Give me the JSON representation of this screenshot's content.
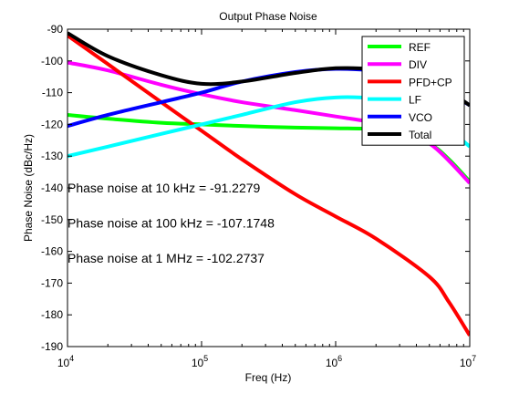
{
  "chart_data": {
    "type": "line",
    "title": "Output Phase Noise",
    "xlabel": "Freq (Hz)",
    "ylabel": "Phase Noise (dBc/Hz)",
    "x_scale": "log",
    "xlim": [
      10000,
      10000000
    ],
    "ylim": [
      -190,
      -90
    ],
    "x_ticks": [
      {
        "value": 10000,
        "base": "10",
        "exp": "4"
      },
      {
        "value": 100000,
        "base": "10",
        "exp": "5"
      },
      {
        "value": 1000000,
        "base": "10",
        "exp": "6"
      },
      {
        "value": 10000000,
        "base": "10",
        "exp": "7"
      }
    ],
    "y_ticks": [
      -90,
      -100,
      -110,
      -120,
      -130,
      -140,
      -150,
      -160,
      -170,
      -180,
      -190
    ],
    "grid": false,
    "legend_position": "top-right",
    "series": [
      {
        "name": "REF",
        "color": "#00ff00",
        "points": [
          [
            10000,
            -117.0
          ],
          [
            20000,
            -118.2
          ],
          [
            50000,
            -119.5
          ],
          [
            100000,
            -120.0
          ],
          [
            200000,
            -120.5
          ],
          [
            500000,
            -121.0
          ],
          [
            1000000,
            -121.2
          ],
          [
            2000000,
            -121.5
          ],
          [
            3000000,
            -122.5
          ],
          [
            5000000,
            -126.0
          ],
          [
            7000000,
            -131.0
          ],
          [
            10000000,
            -138.0
          ]
        ]
      },
      {
        "name": "DIV",
        "color": "#ff00ff",
        "points": [
          [
            10000,
            -100.5
          ],
          [
            20000,
            -103.0
          ],
          [
            50000,
            -107.5
          ],
          [
            100000,
            -110.5
          ],
          [
            200000,
            -113.0
          ],
          [
            500000,
            -115.5
          ],
          [
            1000000,
            -117.5
          ],
          [
            2000000,
            -119.5
          ],
          [
            3000000,
            -121.5
          ],
          [
            5000000,
            -126.0
          ],
          [
            7000000,
            -131.5
          ],
          [
            10000000,
            -138.5
          ]
        ]
      },
      {
        "name": "PFD+CP",
        "color": "#ff0000",
        "points": [
          [
            10000,
            -92.0
          ],
          [
            20000,
            -101.0
          ],
          [
            50000,
            -113.0
          ],
          [
            100000,
            -122.0
          ],
          [
            200000,
            -131.0
          ],
          [
            500000,
            -142.0
          ],
          [
            1000000,
            -149.0
          ],
          [
            2000000,
            -156.0
          ],
          [
            5000000,
            -168.0
          ],
          [
            7000000,
            -176.0
          ],
          [
            10000000,
            -186.5
          ]
        ]
      },
      {
        "name": "LF",
        "color": "#00ffff",
        "points": [
          [
            10000,
            -130.0
          ],
          [
            20000,
            -127.0
          ],
          [
            50000,
            -123.0
          ],
          [
            100000,
            -120.0
          ],
          [
            200000,
            -117.0
          ],
          [
            500000,
            -113.0
          ],
          [
            1000000,
            -111.5
          ],
          [
            2000000,
            -111.8
          ],
          [
            3000000,
            -113.0
          ],
          [
            5000000,
            -117.0
          ],
          [
            7000000,
            -121.5
          ],
          [
            10000000,
            -127.0
          ]
        ]
      },
      {
        "name": "VCO",
        "color": "#0000ff",
        "points": [
          [
            10000,
            -120.5
          ],
          [
            20000,
            -117.0
          ],
          [
            50000,
            -113.0
          ],
          [
            100000,
            -110.0
          ],
          [
            200000,
            -106.5
          ],
          [
            500000,
            -103.5
          ],
          [
            1000000,
            -102.5
          ],
          [
            2000000,
            -103.0
          ],
          [
            3000000,
            -104.0
          ],
          [
            5000000,
            -107.0
          ],
          [
            7000000,
            -110.0
          ],
          [
            10000000,
            -114.0
          ]
        ]
      },
      {
        "name": "Total",
        "color": "#000000",
        "points": [
          [
            10000,
            -91.2
          ],
          [
            20000,
            -98.5
          ],
          [
            50000,
            -104.5
          ],
          [
            100000,
            -107.2
          ],
          [
            200000,
            -106.5
          ],
          [
            500000,
            -103.8
          ],
          [
            1000000,
            -102.3
          ],
          [
            2000000,
            -102.6
          ],
          [
            3000000,
            -103.5
          ],
          [
            5000000,
            -106.5
          ],
          [
            7000000,
            -109.5
          ],
          [
            10000000,
            -114.0
          ]
        ]
      }
    ],
    "annotations": [
      {
        "text": "Phase noise at 10 kHz = -91.2279",
        "y": -141.5
      },
      {
        "text": "Phase noise at 100 kHz = -107.1748",
        "y": -152.5
      },
      {
        "text": "Phase noise at 1 MHz = -102.2737",
        "y": -163.5
      }
    ]
  }
}
